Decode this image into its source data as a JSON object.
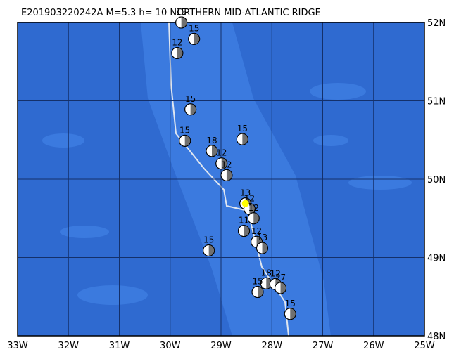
{
  "title": "E201903220242A M=5.3 h= 10 NORTHERN MID-ATLANTIC RIDGE",
  "map": {
    "lonlim": [
      -33,
      -25
    ],
    "latlim": [
      48,
      52
    ],
    "lonticks": [
      {
        "value": -33,
        "label": "33W"
      },
      {
        "value": -32,
        "label": "32W"
      },
      {
        "value": -31,
        "label": "31W"
      },
      {
        "value": -30,
        "label": "30W"
      },
      {
        "value": -29,
        "label": "29W"
      },
      {
        "value": -28,
        "label": "28W"
      },
      {
        "value": -27,
        "label": "27W"
      },
      {
        "value": -26,
        "label": "26W"
      },
      {
        "value": -25,
        "label": "25W"
      }
    ],
    "latticks": [
      {
        "value": 52,
        "label": "52N"
      },
      {
        "value": 51,
        "label": "51N"
      },
      {
        "value": 50,
        "label": "50N"
      },
      {
        "value": 49,
        "label": "49N"
      },
      {
        "value": 48,
        "label": "48N"
      }
    ],
    "epicenter": {
      "lon": -28.52,
      "lat": 49.69,
      "color": "#ffff00"
    },
    "events": [
      {
        "lon": -29.78,
        "lat": 52.0,
        "depth": "15"
      },
      {
        "lon": -29.53,
        "lat": 51.79,
        "depth": "15"
      },
      {
        "lon": -29.86,
        "lat": 51.61,
        "depth": "12"
      },
      {
        "lon": -29.6,
        "lat": 50.89,
        "depth": "15"
      },
      {
        "lon": -29.71,
        "lat": 50.49,
        "depth": "15"
      },
      {
        "lon": -29.18,
        "lat": 50.36,
        "depth": "18"
      },
      {
        "lon": -28.58,
        "lat": 50.51,
        "depth": "15"
      },
      {
        "lon": -28.99,
        "lat": 50.2,
        "depth": "12"
      },
      {
        "lon": -28.89,
        "lat": 50.05,
        "depth": "12"
      },
      {
        "lon": -28.52,
        "lat": 49.69,
        "depth": "13"
      },
      {
        "lon": -28.44,
        "lat": 49.62,
        "depth": "12"
      },
      {
        "lon": -28.36,
        "lat": 49.5,
        "depth": "12"
      },
      {
        "lon": -28.55,
        "lat": 49.34,
        "depth": "11"
      },
      {
        "lon": -28.3,
        "lat": 49.2,
        "depth": "12"
      },
      {
        "lon": -28.19,
        "lat": 49.12,
        "depth": "13"
      },
      {
        "lon": -29.24,
        "lat": 49.09,
        "depth": "15"
      },
      {
        "lon": -28.11,
        "lat": 48.67,
        "depth": "18"
      },
      {
        "lon": -27.93,
        "lat": 48.66,
        "depth": "12"
      },
      {
        "lon": -27.83,
        "lat": 48.61,
        "depth": "27"
      },
      {
        "lon": -28.28,
        "lat": 48.56,
        "depth": "15"
      },
      {
        "lon": -27.64,
        "lat": 48.28,
        "depth": "15"
      }
    ]
  }
}
